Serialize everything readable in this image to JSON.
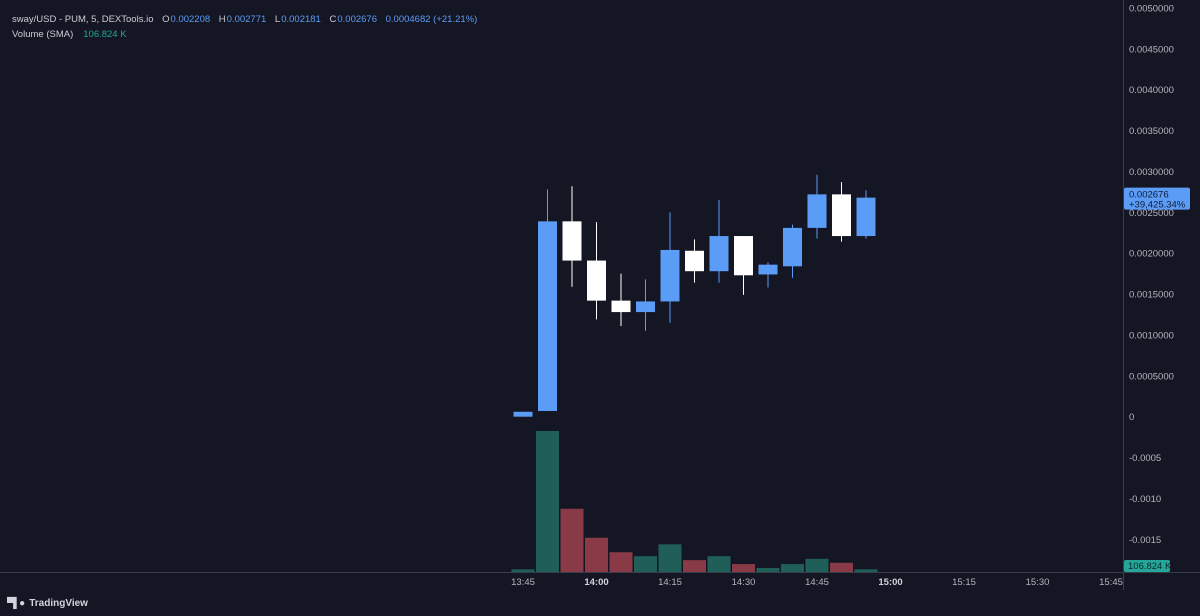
{
  "header": {
    "symbol": "sway/USD - PUM, 5, DEXTools.io",
    "open_label": "O",
    "open": "0.002208",
    "high_label": "H",
    "high": "0.002771",
    "low_label": "L",
    "low": "0.002181",
    "close_label": "C",
    "close": "0.002676",
    "change": "0.0004682 (+21.21%)",
    "volume_label": "Volume (SMA)",
    "volume": "106.824 K"
  },
  "price_badge": {
    "price": "0.002676",
    "change": "+39,425.34%"
  },
  "volume_badge": "106.824 K",
  "brand": "TradingView",
  "colors": {
    "background": "#151623",
    "up_candle": "#5b9cf6",
    "down_candle": "#ffffff",
    "volume_up": "#1f5f57",
    "volume_down": "#8a3a47",
    "volume_badge": "#26a69a",
    "price_badge": "#5b9cf6"
  },
  "chart_data": {
    "type": "candlestick",
    "y_ticks": [
      "0.0050000",
      "0.0045000",
      "0.0040000",
      "0.0035000",
      "0.0030000",
      "0.0025000",
      "0.0020000",
      "0.0015000",
      "0.0010000",
      "0.0005000",
      "0",
      "-0.0005",
      "-0.0010",
      "-0.0015"
    ],
    "y_tick_values": [
      0.005,
      0.0045,
      0.004,
      0.0035,
      0.003,
      0.0025,
      0.002,
      0.0015,
      0.001,
      0.0005,
      0,
      -0.0005,
      -0.001,
      -0.0015
    ],
    "ylim": [
      -0.0019,
      0.005
    ],
    "x_ticks": [
      {
        "label": "13:45",
        "bold": false
      },
      {
        "label": "14:00",
        "bold": true
      },
      {
        "label": "14:15",
        "bold": false
      },
      {
        "label": "14:30",
        "bold": false
      },
      {
        "label": "14:45",
        "bold": false
      },
      {
        "label": "15:00",
        "bold": true
      },
      {
        "label": "15:15",
        "bold": false
      },
      {
        "label": "15:30",
        "bold": false
      },
      {
        "label": "15:45",
        "bold": false
      }
    ],
    "candles": [
      {
        "time": "13:45",
        "open": 0.0,
        "high": 6e-05,
        "low": 0.0,
        "close": 6e-05,
        "volume": 2
      },
      {
        "time": "13:50",
        "open": 7e-05,
        "high": 0.00278,
        "low": 7e-05,
        "close": 0.00239,
        "volume": 107
      },
      {
        "time": "13:55",
        "open": 0.00239,
        "high": 0.00282,
        "low": 0.00159,
        "close": 0.00191,
        "volume": 48
      },
      {
        "time": "14:00",
        "open": 0.00191,
        "high": 0.00238,
        "low": 0.00119,
        "close": 0.00142,
        "volume": 26
      },
      {
        "time": "14:05",
        "open": 0.00142,
        "high": 0.00175,
        "low": 0.00111,
        "close": 0.00128,
        "volume": 15
      },
      {
        "time": "14:10",
        "open": 0.00128,
        "high": 0.00168,
        "low": 0.00105,
        "close": 0.00141,
        "volume": 12
      },
      {
        "time": "14:15",
        "open": 0.00141,
        "high": 0.0025,
        "low": 0.00115,
        "close": 0.00204,
        "volume": 21
      },
      {
        "time": "14:20",
        "open": 0.00203,
        "high": 0.00217,
        "low": 0.00164,
        "close": 0.00178,
        "volume": 9
      },
      {
        "time": "14:25",
        "open": 0.00178,
        "high": 0.00265,
        "low": 0.00164,
        "close": 0.00221,
        "volume": 12
      },
      {
        "time": "14:30",
        "open": 0.00221,
        "high": 0.00221,
        "low": 0.00149,
        "close": 0.00173,
        "volume": 6
      },
      {
        "time": "14:35",
        "open": 0.00174,
        "high": 0.00189,
        "low": 0.00158,
        "close": 0.00186,
        "volume": 3
      },
      {
        "time": "14:40",
        "open": 0.00184,
        "high": 0.00235,
        "low": 0.0017,
        "close": 0.00231,
        "volume": 6
      },
      {
        "time": "14:45",
        "open": 0.00231,
        "high": 0.00296,
        "low": 0.00218,
        "close": 0.00272,
        "volume": 10
      },
      {
        "time": "14:50",
        "open": 0.00272,
        "high": 0.00287,
        "low": 0.00214,
        "close": 0.00221,
        "volume": 7
      },
      {
        "time": "14:55",
        "open": 0.00221,
        "high": 0.00277,
        "low": 0.00218,
        "close": 0.00268,
        "volume": 2
      }
    ]
  }
}
